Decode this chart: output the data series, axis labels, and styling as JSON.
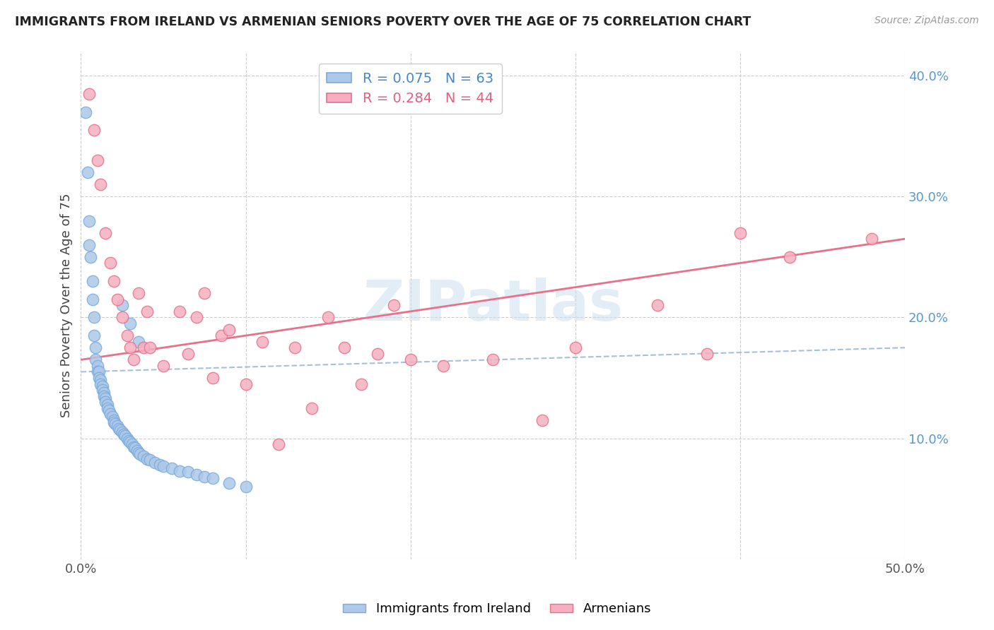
{
  "title": "IMMIGRANTS FROM IRELAND VS ARMENIAN SENIORS POVERTY OVER THE AGE OF 75 CORRELATION CHART",
  "source": "Source: ZipAtlas.com",
  "ylabel": "Seniors Poverty Over the Age of 75",
  "xlim": [
    0,
    0.5
  ],
  "ylim": [
    0,
    0.42
  ],
  "ireland_R": 0.075,
  "ireland_N": 63,
  "armenian_R": 0.284,
  "armenian_N": 44,
  "ireland_color": "#adc8e8",
  "armenian_color": "#f5afc0",
  "ireland_edge_color": "#7aacdd",
  "armenian_edge_color": "#e8708a",
  "ireland_line_color": "#99bbd8",
  "armenian_line_color": "#e8708a",
  "watermark_color": "#ccdff0",
  "watermark_text": "ZIPatlas",
  "ireland_x": [
    0.003,
    0.004,
    0.005,
    0.005,
    0.006,
    0.007,
    0.007,
    0.008,
    0.008,
    0.009,
    0.009,
    0.01,
    0.01,
    0.011,
    0.011,
    0.012,
    0.012,
    0.013,
    0.013,
    0.014,
    0.014,
    0.015,
    0.015,
    0.016,
    0.016,
    0.017,
    0.018,
    0.019,
    0.02,
    0.02,
    0.021,
    0.022,
    0.023,
    0.024,
    0.025,
    0.026,
    0.027,
    0.028,
    0.029,
    0.03,
    0.031,
    0.032,
    0.033,
    0.034,
    0.035,
    0.036,
    0.038,
    0.04,
    0.042,
    0.045,
    0.048,
    0.05,
    0.055,
    0.06,
    0.065,
    0.07,
    0.075,
    0.08,
    0.09,
    0.1,
    0.025,
    0.03,
    0.035
  ],
  "ireland_y": [
    0.37,
    0.32,
    0.28,
    0.26,
    0.25,
    0.23,
    0.215,
    0.2,
    0.185,
    0.175,
    0.165,
    0.16,
    0.155,
    0.155,
    0.15,
    0.148,
    0.145,
    0.143,
    0.14,
    0.138,
    0.135,
    0.133,
    0.13,
    0.128,
    0.125,
    0.123,
    0.12,
    0.118,
    0.115,
    0.113,
    0.112,
    0.11,
    0.108,
    0.107,
    0.105,
    0.103,
    0.102,
    0.1,
    0.098,
    0.097,
    0.095,
    0.093,
    0.092,
    0.09,
    0.088,
    0.087,
    0.085,
    0.083,
    0.082,
    0.08,
    0.078,
    0.077,
    0.075,
    0.073,
    0.072,
    0.07,
    0.068,
    0.067,
    0.063,
    0.06,
    0.21,
    0.195,
    0.18
  ],
  "armenian_x": [
    0.005,
    0.008,
    0.01,
    0.012,
    0.015,
    0.018,
    0.02,
    0.022,
    0.025,
    0.028,
    0.03,
    0.032,
    0.035,
    0.038,
    0.04,
    0.042,
    0.05,
    0.06,
    0.065,
    0.07,
    0.075,
    0.08,
    0.085,
    0.09,
    0.1,
    0.11,
    0.12,
    0.13,
    0.14,
    0.15,
    0.16,
    0.17,
    0.18,
    0.19,
    0.2,
    0.22,
    0.25,
    0.28,
    0.3,
    0.35,
    0.38,
    0.4,
    0.43,
    0.48
  ],
  "armenian_y": [
    0.385,
    0.355,
    0.33,
    0.31,
    0.27,
    0.245,
    0.23,
    0.215,
    0.2,
    0.185,
    0.175,
    0.165,
    0.22,
    0.175,
    0.205,
    0.175,
    0.16,
    0.205,
    0.17,
    0.2,
    0.22,
    0.15,
    0.185,
    0.19,
    0.145,
    0.18,
    0.095,
    0.175,
    0.125,
    0.2,
    0.175,
    0.145,
    0.17,
    0.21,
    0.165,
    0.16,
    0.165,
    0.115,
    0.175,
    0.21,
    0.17,
    0.27,
    0.25,
    0.265
  ]
}
